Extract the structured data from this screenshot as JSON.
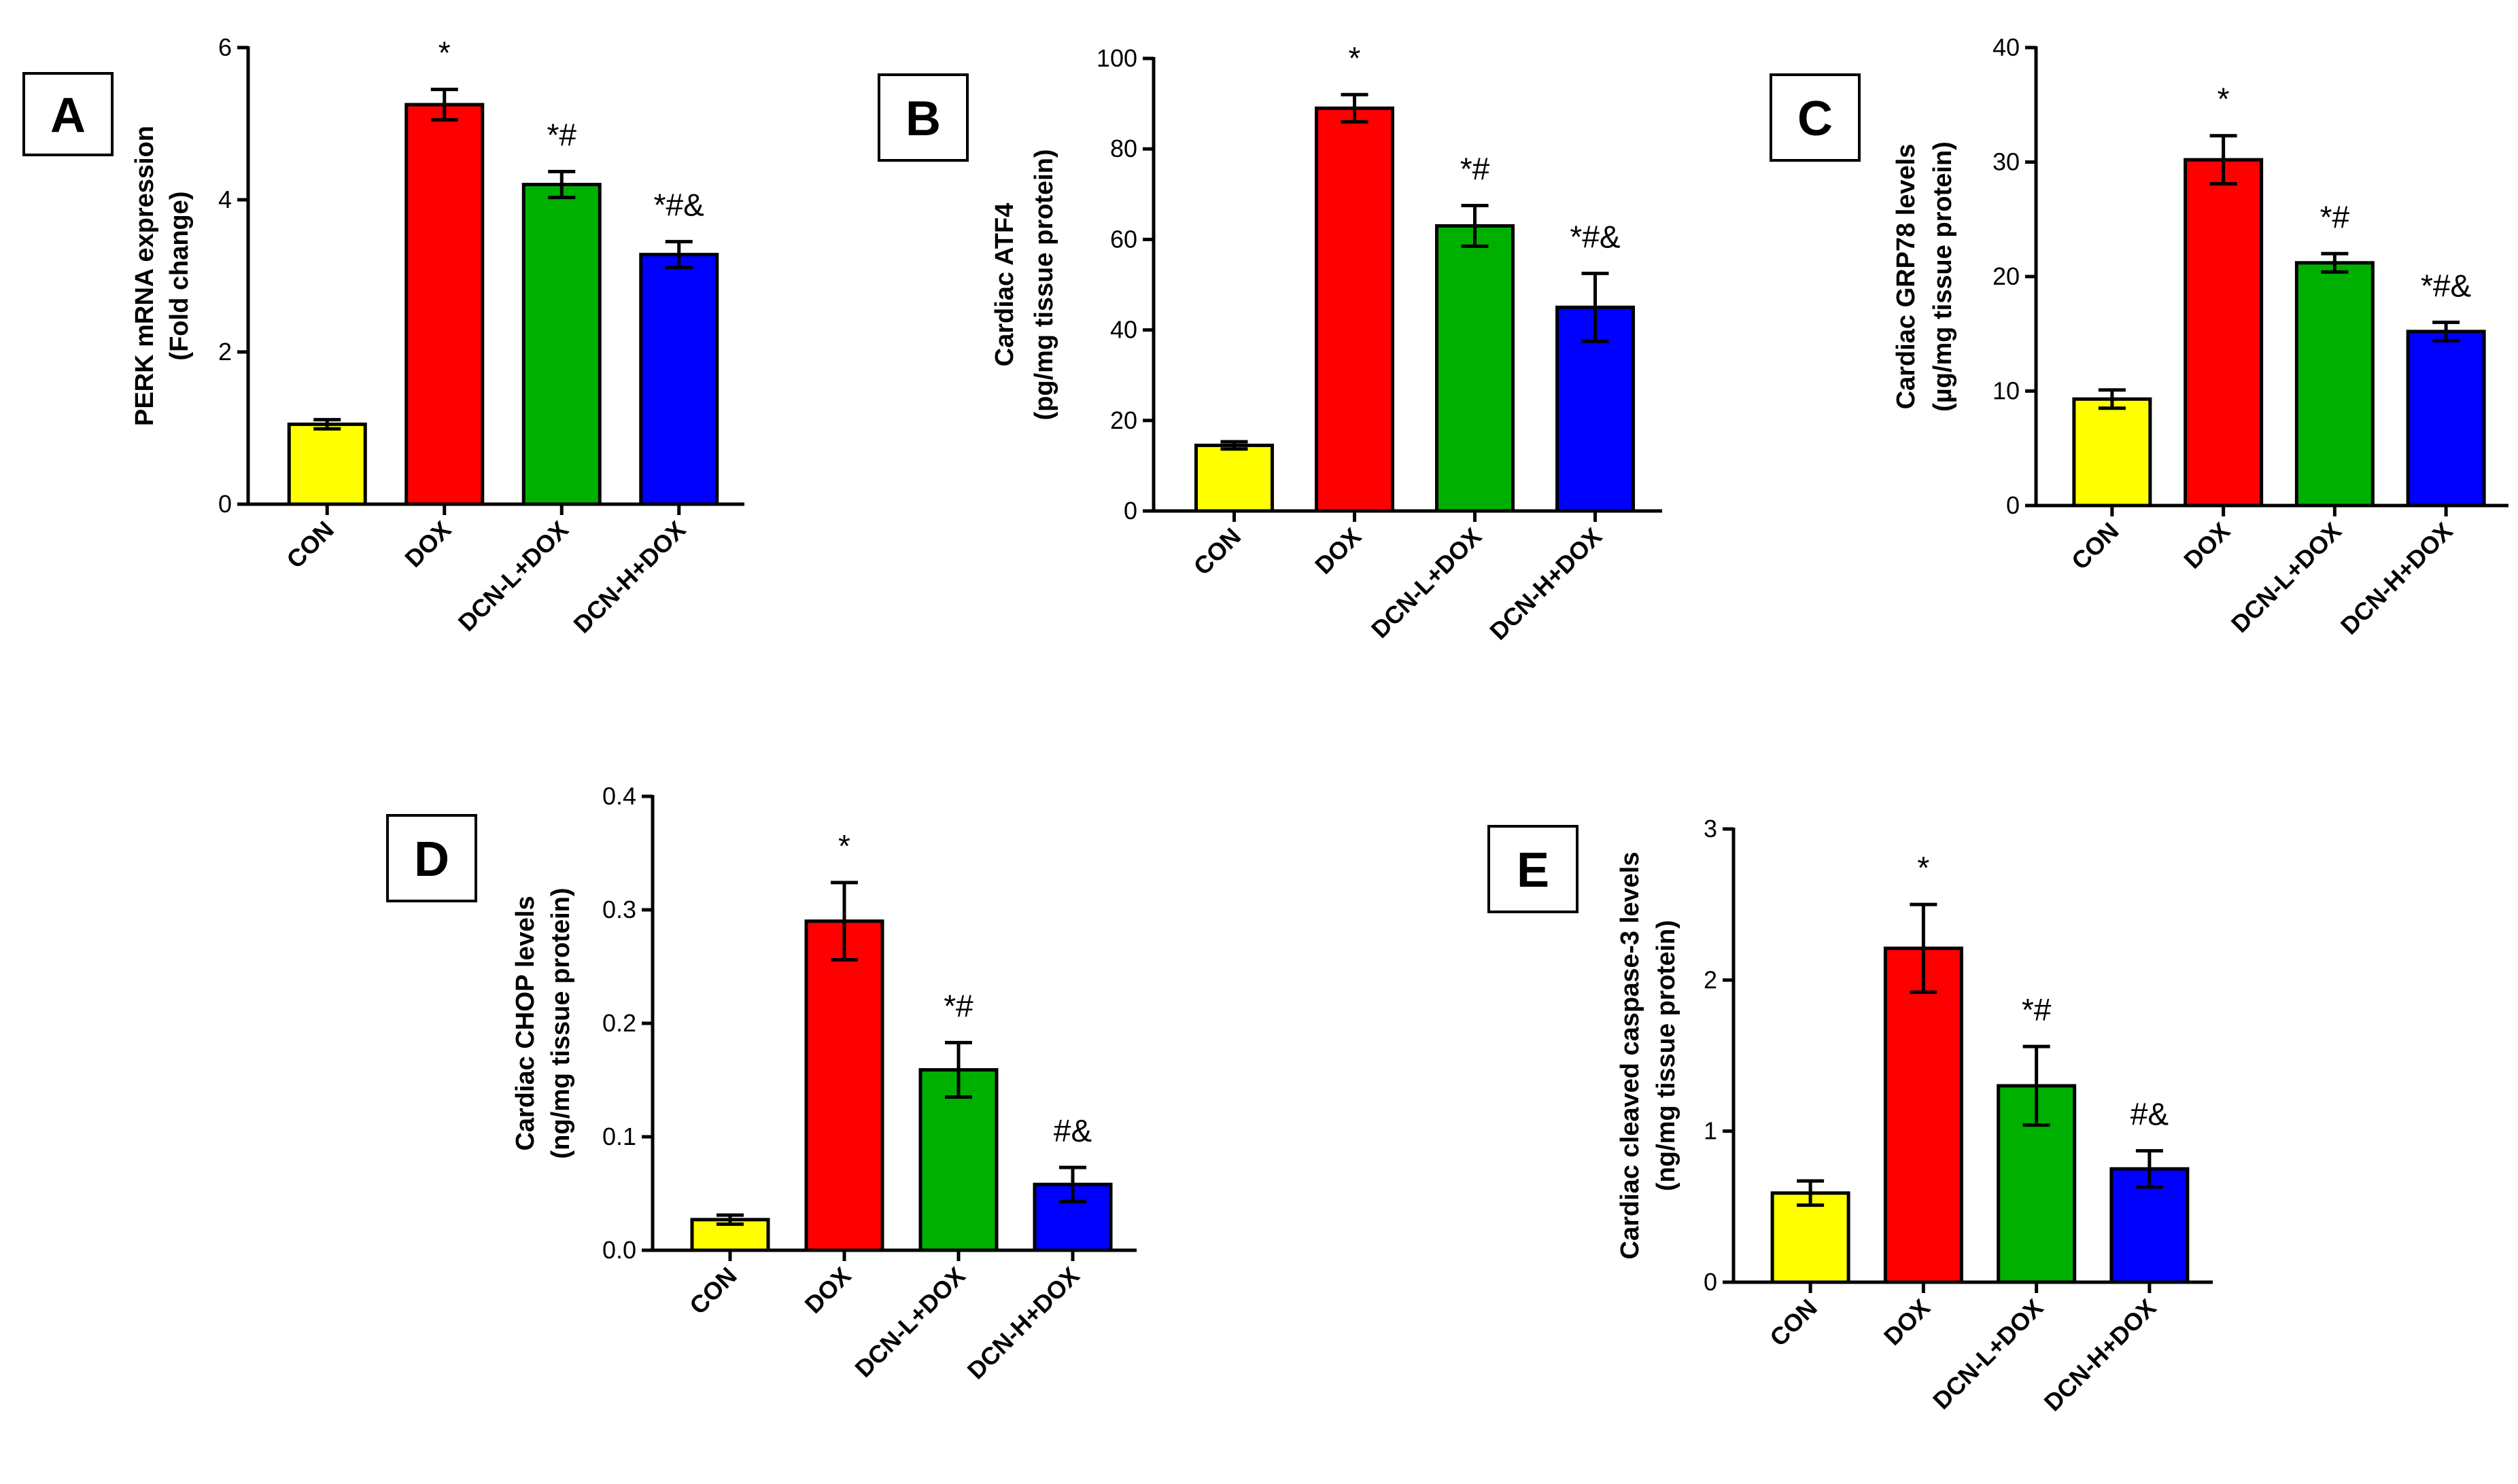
{
  "colors": {
    "CON": "#ffff00",
    "DOX": "#ff0000",
    "DCN-L+DOX": "#00b000",
    "DCN-H+DOX": "#0000ff"
  },
  "chart_data": [
    {
      "panel": "A",
      "type": "bar",
      "ylabel_lines": [
        "PERK mRNA expression",
        "(Fold change)"
      ],
      "categories": [
        "CON",
        "DOX",
        "DCN-L+DOX",
        "DCN-H+DOX"
      ],
      "values": [
        1.05,
        5.25,
        4.2,
        3.28
      ],
      "errors": [
        0.06,
        0.2,
        0.17,
        0.17
      ],
      "significance": [
        "",
        "*",
        "*#",
        "*#&"
      ],
      "ylim": [
        0,
        6
      ],
      "yticks": [
        0,
        2,
        4,
        6
      ],
      "ytick_labels": [
        "0",
        "2",
        "4",
        "6"
      ]
    },
    {
      "panel": "B",
      "type": "bar",
      "ylabel_lines": [
        "Cardiac ATF4",
        "(pg/mg tissue protein)"
      ],
      "categories": [
        "CON",
        "DOX",
        "DCN-L+DOX",
        "DCN-H+DOX"
      ],
      "values": [
        14.5,
        89,
        63,
        45
      ],
      "errors": [
        0.8,
        3,
        4.5,
        7.5
      ],
      "significance": [
        "",
        "*",
        "*#",
        "*#&"
      ],
      "ylim": [
        0,
        100
      ],
      "yticks": [
        0,
        20,
        40,
        60,
        80,
        100
      ],
      "ytick_labels": [
        "0",
        "20",
        "40",
        "60",
        "80",
        "100"
      ]
    },
    {
      "panel": "C",
      "type": "bar",
      "ylabel_lines": [
        "Cardiac GRP78 levels",
        "(µg/mg tissue protein)"
      ],
      "categories": [
        "CON",
        "DOX",
        "DCN-L+DOX",
        "DCN-H+DOX"
      ],
      "values": [
        9.3,
        30.2,
        21.2,
        15.2
      ],
      "errors": [
        0.8,
        2.1,
        0.8,
        0.8
      ],
      "significance": [
        "",
        "*",
        "*#",
        "*#&"
      ],
      "ylim": [
        0,
        40
      ],
      "yticks": [
        0,
        10,
        20,
        30,
        40
      ],
      "ytick_labels": [
        "0",
        "10",
        "20",
        "30",
        "40"
      ]
    },
    {
      "panel": "D",
      "type": "bar",
      "ylabel_lines": [
        "Cardiac CHOP levels",
        "(ng/mg tissue protein)"
      ],
      "categories": [
        "CON",
        "DOX",
        "DCN-L+DOX",
        "DCN-H+DOX"
      ],
      "values": [
        0.027,
        0.29,
        0.159,
        0.058
      ],
      "errors": [
        0.004,
        0.034,
        0.024,
        0.015
      ],
      "significance": [
        "",
        "*",
        "*#",
        "#&"
      ],
      "ylim": [
        0,
        0.4
      ],
      "yticks": [
        0,
        0.1,
        0.2,
        0.3,
        0.4
      ],
      "ytick_labels": [
        "0.0",
        "0.1",
        "0.2",
        "0.3",
        "0.4"
      ]
    },
    {
      "panel": "E",
      "type": "bar",
      "ylabel_lines": [
        "Cardiac cleaved caspase-3 levels",
        "(ng/mg tissue protein)"
      ],
      "categories": [
        "CON",
        "DOX",
        "DCN-L+DOX",
        "DCN-H+DOX"
      ],
      "values": [
        0.59,
        2.21,
        1.3,
        0.75
      ],
      "errors": [
        0.08,
        0.29,
        0.26,
        0.12
      ],
      "significance": [
        "",
        "*",
        "*#",
        "#&"
      ],
      "ylim": [
        0,
        3
      ],
      "yticks": [
        0,
        1,
        2,
        3
      ],
      "ytick_labels": [
        "0",
        "1",
        "2",
        "3"
      ]
    }
  ]
}
